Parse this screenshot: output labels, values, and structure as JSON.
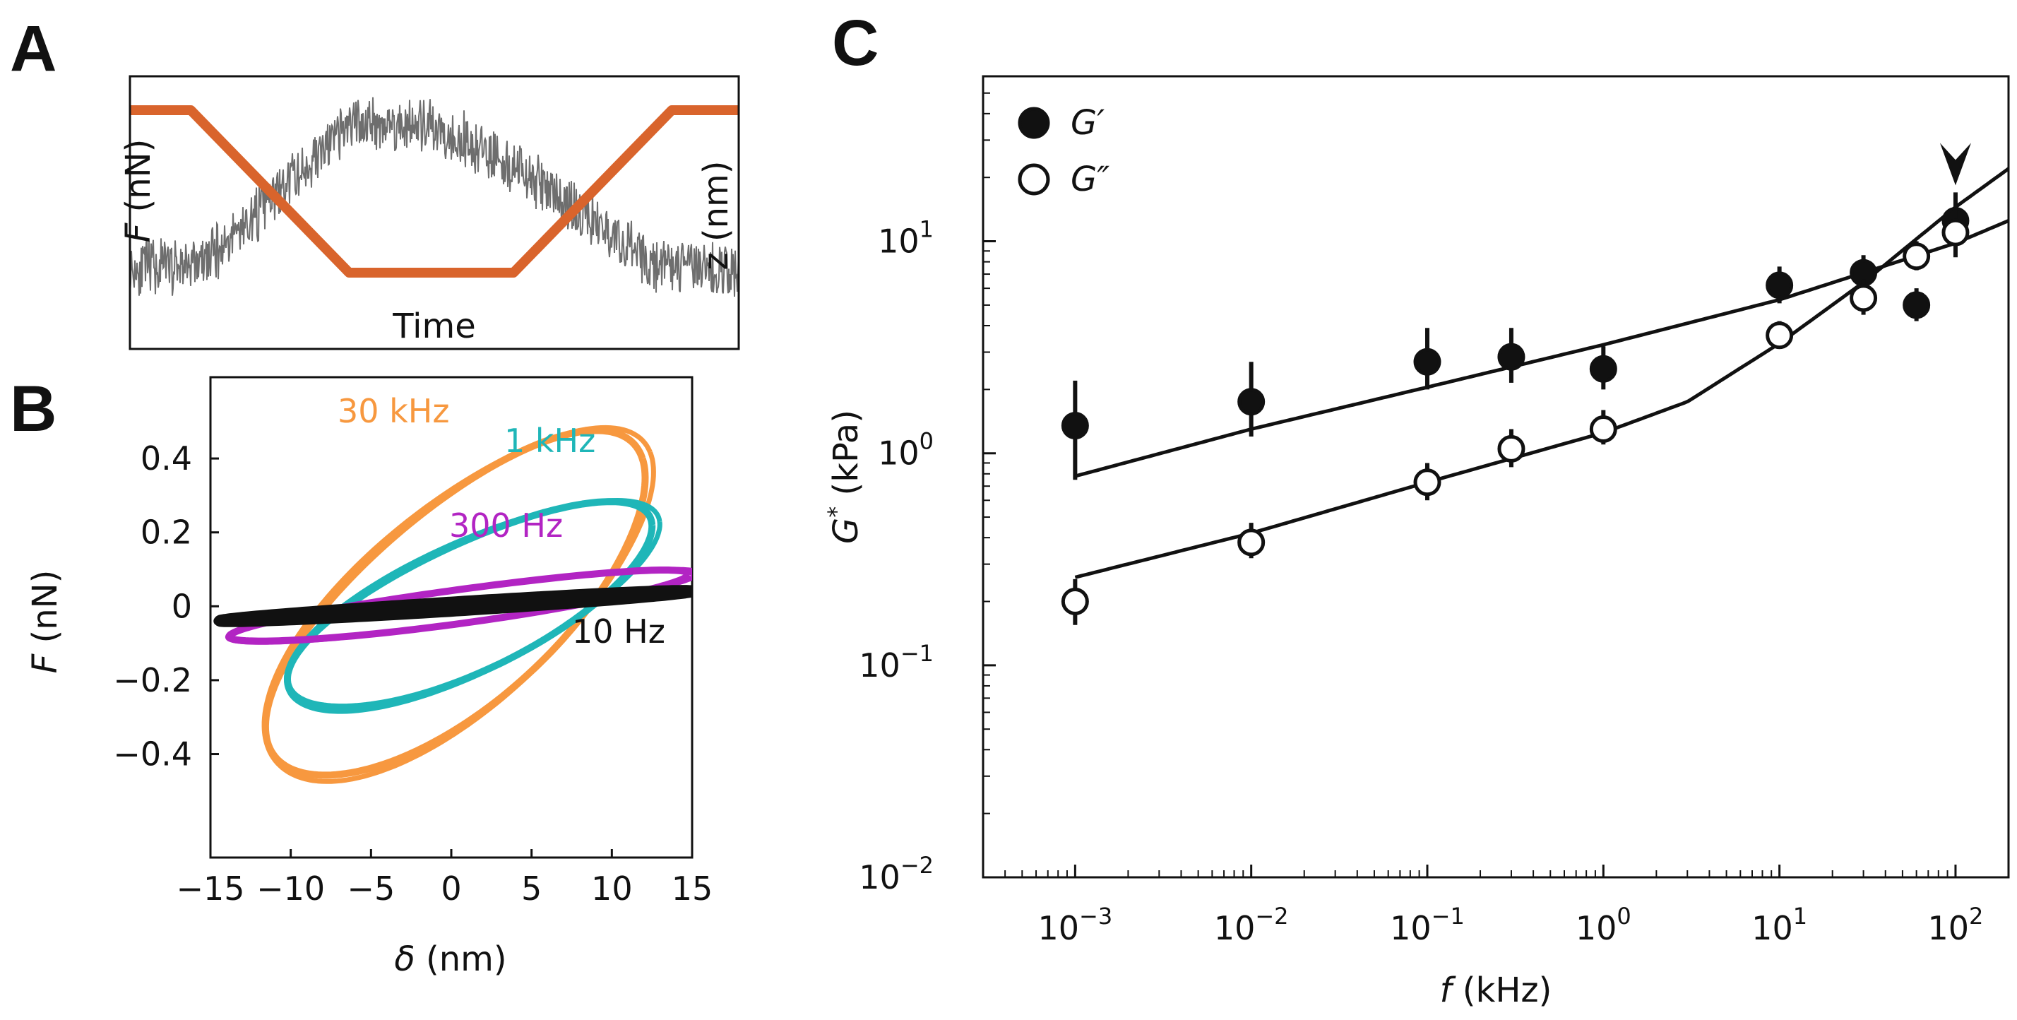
{
  "panels": {
    "a": "A",
    "b": "B",
    "c": "C"
  },
  "colors": {
    "z_trace": "#d9642c",
    "force_trace": "#6e6e6e",
    "f30k": "#f7983f",
    "f1k": "#1fb6b8",
    "f300": "#b224c3",
    "f10": "#111111",
    "axis": "#111111"
  },
  "chart_data": [
    {
      "id": "A",
      "type": "line",
      "title": "",
      "xlabel": "Time",
      "ylabel_left": "F (nN)",
      "ylabel_right": "z (nm)",
      "left_label_parts": [
        "F",
        " (nN)"
      ],
      "right_label": "z (nm)",
      "series": [
        {
          "name": "z (nm)",
          "color": "#d9642c",
          "x": [
            0,
            0.1,
            0.36,
            0.63,
            0.89,
            1.0
          ],
          "values": [
            1,
            1,
            0,
            0,
            1,
            1
          ]
        },
        {
          "name": "F (nN)",
          "color": "#6e6e6e",
          "x": [
            0,
            0.12,
            0.37,
            0.52,
            0.62,
            0.86,
            1.0
          ],
          "values": [
            0.3,
            0.32,
            0.88,
            0.84,
            0.72,
            0.32,
            0.28
          ],
          "noise": 0.1
        }
      ]
    },
    {
      "id": "B",
      "type": "line",
      "title": "",
      "xlabel": "δ (nm)",
      "ylabel": "F (nN)",
      "ylabel_parts": [
        "F",
        " (nN)"
      ],
      "xlabel_parts": [
        "δ",
        " (nm)"
      ],
      "xlim": [
        -15,
        15
      ],
      "ylim": [
        -0.68,
        0.62
      ],
      "x_ticks": [
        -15,
        -10,
        -5,
        0,
        5,
        10,
        15
      ],
      "x_tick_labels": [
        "−15",
        "−10",
        "−5",
        "0",
        "5",
        "10",
        "15"
      ],
      "y_ticks": [
        0.4,
        0.2,
        0,
        -0.2,
        -0.4
      ],
      "y_tick_labels": [
        "0.4",
        "0.2",
        "0",
        "−0.2",
        "−0.4"
      ],
      "series": [
        {
          "name": "30 kHz",
          "color": "#f7983f",
          "loop": {
            "cx": 0.4,
            "cy": 0.0,
            "ux": 11.5,
            "uy": 0.4,
            "vx": -2.7,
            "vy": 0.24
          }
        },
        {
          "name": "1 kHz",
          "color": "#1fb6b8",
          "loop": {
            "cx": 1.2,
            "cy": 0.0,
            "ux": 11.3,
            "uy": 0.22,
            "vx": -0.9,
            "vy": 0.17
          }
        },
        {
          "name": "300 Hz",
          "color": "#b224c3",
          "loop": {
            "cx": 0.5,
            "cy": 0.0,
            "ux": 14.3,
            "uy": 0.085,
            "vx": -0.2,
            "vy": 0.045
          }
        },
        {
          "name": "10 Hz",
          "color": "#111111",
          "loop": {
            "cx": 0.3,
            "cy": 0.0,
            "ux": 14.7,
            "uy": 0.04,
            "vx": 0,
            "vy": 0.012
          }
        }
      ],
      "annotations": [
        "30 kHz",
        "1 kHz",
        "300 Hz",
        "10 Hz"
      ]
    },
    {
      "id": "C",
      "type": "scatter",
      "title": "",
      "xlabel": "f (kHz)",
      "xlabel_parts": [
        "f",
        " (kHz)"
      ],
      "ylabel": "G* (kPa)",
      "ylabel_parts": [
        "G",
        "*",
        " (kPa)"
      ],
      "xscale": "log",
      "yscale": "log",
      "xlim": [
        0.0003,
        200
      ],
      "ylim": [
        0.01,
        60
      ],
      "x_ticks": [
        0.001,
        0.01,
        0.1,
        1,
        10,
        100
      ],
      "x_tick_bases": [
        "10",
        "10",
        "10",
        "10",
        "10",
        "10"
      ],
      "x_tick_exps": [
        "−3",
        "−2",
        "−1",
        "0",
        "1",
        "2"
      ],
      "y_ticks": [
        0.01,
        0.1,
        1,
        10
      ],
      "y_tick_bases": [
        "10",
        "10",
        "10",
        "10"
      ],
      "y_tick_exps": [
        "−2",
        "−1",
        "0",
        "1"
      ],
      "legend": [
        "G′",
        "G″"
      ],
      "legend_position": "top-left",
      "arrow_at_x": 100,
      "series": [
        {
          "name": "G′",
          "filled": true,
          "x": [
            0.001,
            0.01,
            0.1,
            0.3,
            1,
            10,
            30,
            60,
            100
          ],
          "y": [
            1.35,
            1.75,
            2.7,
            2.85,
            2.5,
            6.2,
            7.1,
            5.0,
            12.5
          ],
          "err_low": [
            0.75,
            1.2,
            2.0,
            2.15,
            2.0,
            5.1,
            5.9,
            4.2,
            10.0
          ],
          "err_high": [
            2.2,
            2.7,
            3.9,
            3.9,
            3.2,
            7.6,
            8.6,
            6.0,
            17.0
          ]
        },
        {
          "name": "G″",
          "filled": false,
          "x": [
            0.001,
            0.01,
            0.1,
            0.3,
            1,
            10,
            30,
            60,
            100
          ],
          "y": [
            0.2,
            0.38,
            0.73,
            1.05,
            1.3,
            3.6,
            5.4,
            8.5,
            11.0
          ],
          "err_low": [
            0.155,
            0.32,
            0.6,
            0.86,
            1.1,
            3.2,
            4.5,
            7.3,
            8.4
          ],
          "err_high": [
            0.255,
            0.47,
            0.9,
            1.3,
            1.6,
            4.2,
            6.6,
            10.0,
            14.5
          ]
        }
      ],
      "fits": [
        {
          "name": "G′ fit",
          "x": [
            0.001,
            0.01,
            0.1,
            1,
            10,
            100,
            200
          ],
          "y": [
            0.78,
            1.3,
            2.05,
            3.25,
            5.3,
            9.8,
            12.5
          ]
        },
        {
          "name": "G″ fit",
          "x": [
            0.001,
            0.01,
            0.1,
            1,
            3,
            10,
            30,
            100,
            200
          ],
          "y": [
            0.26,
            0.42,
            0.73,
            1.25,
            1.75,
            3.3,
            6.4,
            14.5,
            22.0
          ]
        }
      ]
    }
  ]
}
